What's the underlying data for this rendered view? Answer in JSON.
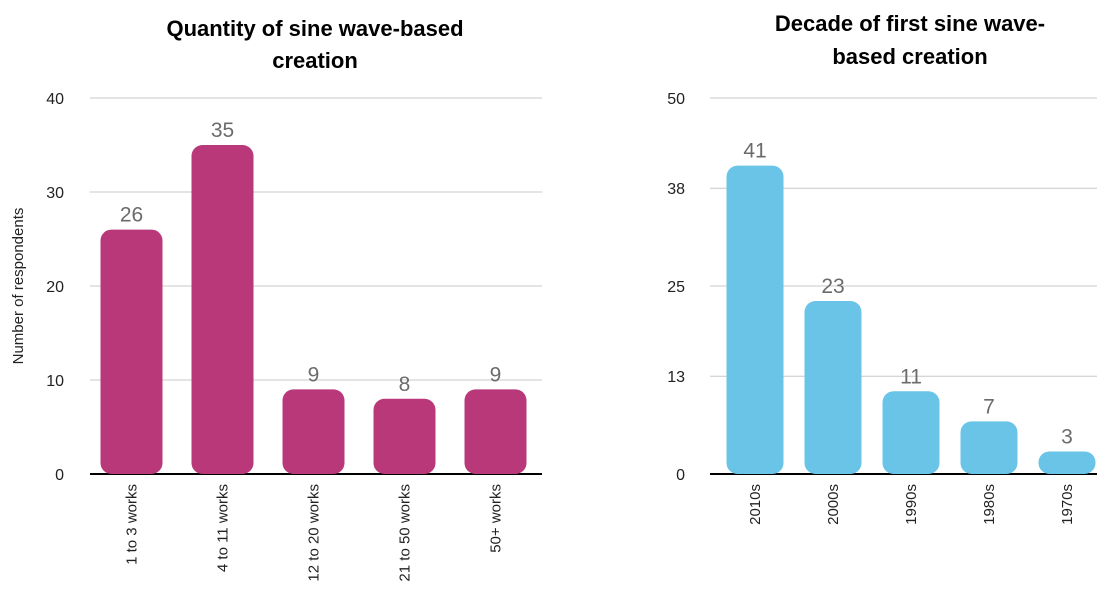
{
  "chart_data": [
    {
      "type": "bar",
      "title": "Quantity of sine wave-based creation",
      "title_lines": [
        "Quantity of sine wave-based",
        "creation"
      ],
      "ylabel": "Number of respondents",
      "xlabel": "",
      "categories": [
        "1 to 3 works",
        "4 to 11 works",
        "12 to 20 works",
        "21 to 50 works",
        "50+ works"
      ],
      "values": [
        26,
        35,
        9,
        8,
        9
      ],
      "ylim": [
        0,
        40
      ],
      "yticks": [
        0,
        10,
        20,
        30,
        40
      ],
      "grid": true,
      "bar_color": "#b8387a",
      "legend": "none"
    },
    {
      "type": "bar",
      "title": "Decade of first sine wave-based creation",
      "title_lines": [
        "Decade of first sine wave-",
        "based creation"
      ],
      "ylabel": "",
      "xlabel": "",
      "categories": [
        "2010s",
        "2000s",
        "1990s",
        "1980s",
        "1970s"
      ],
      "values": [
        41,
        23,
        11,
        7,
        3
      ],
      "ylim": [
        0,
        50
      ],
      "yticks": [
        0,
        13,
        25,
        38,
        50
      ],
      "grid": true,
      "bar_color": "#6ac4e8",
      "legend": "none"
    }
  ]
}
